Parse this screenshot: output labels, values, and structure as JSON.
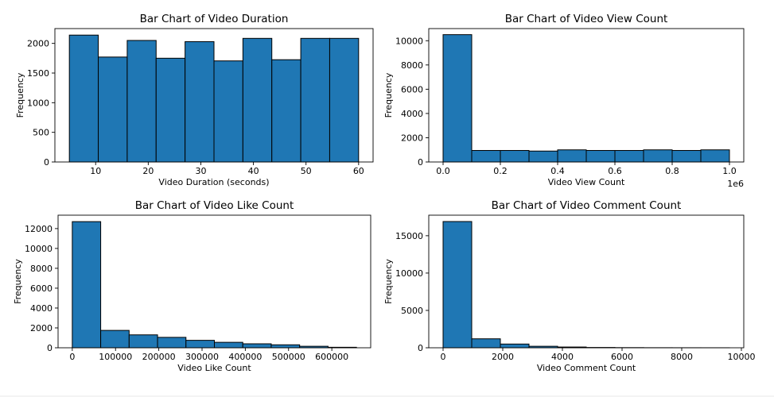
{
  "window": {
    "background": "#ffffff",
    "frame_background": "#f4f4f4"
  },
  "style": {
    "bar_color": "#1f77b4",
    "edge_color": "#000000"
  },
  "chart_data": [
    {
      "type": "bar",
      "title": "Bar Chart of Video Duration",
      "xlabel": "Video Duration (seconds)",
      "ylabel": "Frequency",
      "bin_edges": [
        5,
        10.5,
        16,
        21.5,
        27,
        32.5,
        38,
        43.5,
        49,
        54.5,
        60
      ],
      "values": [
        2140,
        1770,
        2050,
        1750,
        2030,
        1705,
        2085,
        1725,
        2085,
        2085
      ],
      "xlim": [
        2.25,
        62.75
      ],
      "ylim": [
        0,
        2250
      ],
      "xticks": [
        10,
        20,
        30,
        40,
        50,
        60
      ],
      "xtick_labels": [
        "10",
        "20",
        "30",
        "40",
        "50",
        "60"
      ],
      "yticks": [
        0,
        500,
        1000,
        1500,
        2000
      ],
      "ytick_labels": [
        "0",
        "500",
        "1000",
        "1500",
        "2000"
      ],
      "grid": false
    },
    {
      "type": "bar",
      "title": "Bar Chart of Video View Count",
      "xlabel": "Video View Count",
      "ylabel": "Frequency",
      "offset_text": "1e6",
      "bin_edges": [
        0,
        0.1,
        0.2,
        0.3,
        0.4,
        0.5,
        0.6,
        0.7,
        0.8,
        0.9,
        1.0
      ],
      "values": [
        10500,
        950,
        950,
        900,
        1000,
        950,
        950,
        1000,
        950,
        1000
      ],
      "xlim": [
        -0.05,
        1.05
      ],
      "ylim": [
        0,
        11000
      ],
      "xticks": [
        0,
        0.2,
        0.4,
        0.6,
        0.8,
        1.0
      ],
      "xtick_labels": [
        "0.0",
        "0.2",
        "0.4",
        "0.6",
        "0.8",
        "1.0"
      ],
      "yticks": [
        0,
        2000,
        4000,
        6000,
        8000,
        10000
      ],
      "ytick_labels": [
        "0",
        "2000",
        "4000",
        "6000",
        "8000",
        "10000"
      ],
      "grid": false
    },
    {
      "type": "bar",
      "title": "Bar Chart of Video Like Count",
      "xlabel": "Video Like Count",
      "ylabel": "Frequency",
      "bin_edges": [
        0,
        65700,
        131400,
        197100,
        262800,
        328500,
        394200,
        459900,
        525600,
        591300,
        657000
      ],
      "values": [
        12700,
        1750,
        1300,
        1050,
        750,
        550,
        400,
        300,
        150,
        50
      ],
      "xlim": [
        -32850,
        689850
      ],
      "ylim": [
        0,
        13350
      ],
      "xticks": [
        0,
        100000,
        200000,
        300000,
        400000,
        500000,
        600000
      ],
      "xtick_labels": [
        "0",
        "100000",
        "200000",
        "300000",
        "400000",
        "500000",
        "600000"
      ],
      "yticks": [
        0,
        2000,
        4000,
        6000,
        8000,
        10000,
        12000
      ],
      "ytick_labels": [
        "0",
        "2000",
        "4000",
        "6000",
        "8000",
        "10000",
        "12000"
      ],
      "grid": false
    },
    {
      "type": "bar",
      "title": "Bar Chart of Video Comment Count",
      "xlabel": "Video Comment Count",
      "ylabel": "Frequency",
      "bin_edges": [
        0,
        960,
        1920,
        2880,
        3840,
        4800,
        5760,
        6720,
        7680,
        8640,
        9600
      ],
      "values": [
        16900,
        1200,
        500,
        200,
        100,
        40,
        20,
        10,
        5,
        3
      ],
      "xlim": [
        -480,
        10080
      ],
      "ylim": [
        0,
        17750
      ],
      "xticks": [
        0,
        2000,
        4000,
        6000,
        8000,
        10000
      ],
      "xtick_labels": [
        "0",
        "2000",
        "4000",
        "6000",
        "8000",
        "10000"
      ],
      "yticks": [
        0,
        5000,
        10000,
        15000
      ],
      "ytick_labels": [
        "0",
        "5000",
        "10000",
        "15000"
      ],
      "grid": false
    }
  ]
}
